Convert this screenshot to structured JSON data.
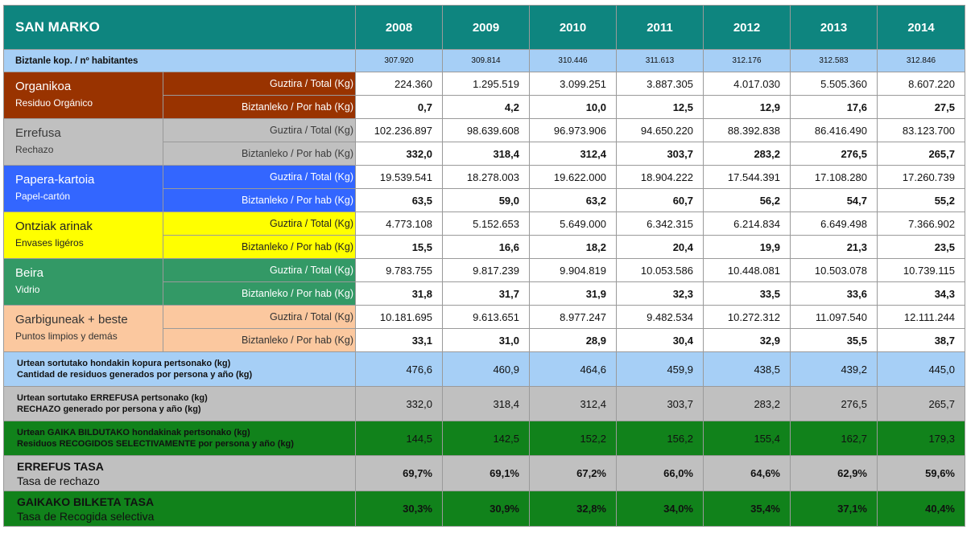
{
  "title": "SAN MARKO",
  "years": [
    "2008",
    "2009",
    "2010",
    "2011",
    "2012",
    "2013",
    "2014"
  ],
  "population": {
    "label": "Biztanle kop. / nº habitantes",
    "values": [
      "307.920",
      "309.814",
      "310.446",
      "311.613",
      "312.176",
      "312.583",
      "312.846"
    ]
  },
  "categories": [
    {
      "name_eu": "Organikoa",
      "name_es": "Residuo Orgánico",
      "color": "#993300",
      "total_label": "Guztira / Total (Kg)",
      "perhab_label": "Biztanleko / Por hab (Kg)",
      "total": [
        "224.360",
        "1.295.519",
        "3.099.251",
        "3.887.305",
        "4.017.030",
        "5.505.360",
        "8.607.220"
      ],
      "perhab": [
        "0,7",
        "4,2",
        "10,0",
        "12,5",
        "12,9",
        "17,6",
        "27,5"
      ]
    },
    {
      "name_eu": "Errefusa",
      "name_es": "Rechazo",
      "color": "#c0c0c0",
      "total_label": "Guztira / Total (Kg)",
      "perhab_label": "Biztanleko / Por hab (Kg)",
      "total": [
        "102.236.897",
        "98.639.608",
        "96.973.906",
        "94.650.220",
        "88.392.838",
        "86.416.490",
        "83.123.700"
      ],
      "perhab": [
        "332,0",
        "318,4",
        "312,4",
        "303,7",
        "283,2",
        "276,5",
        "265,7"
      ]
    },
    {
      "name_eu": "Papera-kartoia",
      "name_es": "Papel-cartón",
      "color": "#3366ff",
      "total_label": "Guztira / Total (Kg)",
      "perhab_label": "Biztanleko / Por hab (Kg)",
      "total": [
        "19.539.541",
        "18.278.003",
        "19.622.000",
        "18.904.222",
        "17.544.391",
        "17.108.280",
        "17.260.739"
      ],
      "perhab": [
        "63,5",
        "59,0",
        "63,2",
        "60,7",
        "56,2",
        "54,7",
        "55,2"
      ]
    },
    {
      "name_eu": "Ontziak arinak",
      "name_es": "Envases ligéros",
      "color": "#ffff00",
      "total_label": "Guztira / Total (Kg)",
      "perhab_label": "Biztanleko / Por hab (Kg)",
      "total": [
        "4.773.108",
        "5.152.653",
        "5.649.000",
        "6.342.315",
        "6.214.834",
        "6.649.498",
        "7.366.902"
      ],
      "perhab": [
        "15,5",
        "16,6",
        "18,2",
        "20,4",
        "19,9",
        "21,3",
        "23,5"
      ]
    },
    {
      "name_eu": "Beira",
      "name_es": "Vidrio",
      "color": "#339966",
      "total_label": "Guztira / Total (Kg)",
      "perhab_label": "Biztanleko / Por hab (Kg)",
      "total": [
        "9.783.755",
        "9.817.239",
        "9.904.819",
        "10.053.586",
        "10.448.081",
        "10.503.078",
        "10.739.115"
      ],
      "perhab": [
        "31,8",
        "31,7",
        "31,9",
        "32,3",
        "33,5",
        "33,6",
        "34,3"
      ]
    },
    {
      "name_eu": "Garbiguneak + beste",
      "name_es": "Puntos limpios y demás",
      "color": "#fbc89f",
      "total_label": "Guztira / Total (Kg)",
      "perhab_label": "Biztanleko / Por hab (Kg)",
      "total": [
        "10.181.695",
        "9.613.651",
        "8.977.247",
        "9.482.534",
        "10.272.312",
        "11.097.540",
        "12.111.244"
      ],
      "perhab": [
        "33,1",
        "31,0",
        "28,9",
        "30,4",
        "32,9",
        "35,5",
        "38,7"
      ]
    }
  ],
  "summaries": [
    {
      "line1": "Urtean sortutako hondakin kopura pertsonako (kg)",
      "line2": "Cantidad de residuos generados por persona y año (kg)",
      "color": "#a6cff6",
      "values": [
        "476,6",
        "460,9",
        "464,6",
        "459,9",
        "438,5",
        "439,2",
        "445,0"
      ]
    },
    {
      "line1": "Urtean sortutako ERREFUSA pertsonako (kg)",
      "line2": "RECHAZO generado por persona y año (kg)",
      "color": "#c0c0c0",
      "values": [
        "332,0",
        "318,4",
        "312,4",
        "303,7",
        "283,2",
        "276,5",
        "265,7"
      ]
    },
    {
      "line1": "Urtean GAIKA BILDUTAKO hondakinak pertsonako (kg)",
      "line2": "Residuos RECOGIDOS SELECTIVAMENTE por persona y año (kg)",
      "color": "#11821b",
      "values": [
        "144,5",
        "142,5",
        "152,2",
        "156,2",
        "155,4",
        "162,7",
        "179,3"
      ]
    }
  ],
  "rates": [
    {
      "label_eu": "ERREFUS TASA",
      "label_es": "Tasa de rechazo",
      "color": "#c0c0c0",
      "values": [
        "69,7%",
        "69,1%",
        "67,2%",
        "66,0%",
        "64,6%",
        "62,9%",
        "59,6%"
      ]
    },
    {
      "label_eu": "GAIKAKO BILKETA TASA",
      "label_es": "Tasa de Recogida selectiva",
      "color": "#11821b",
      "values": [
        "30,3%",
        "30,9%",
        "32,8%",
        "34,0%",
        "35,4%",
        "37,1%",
        "40,4%"
      ]
    }
  ]
}
